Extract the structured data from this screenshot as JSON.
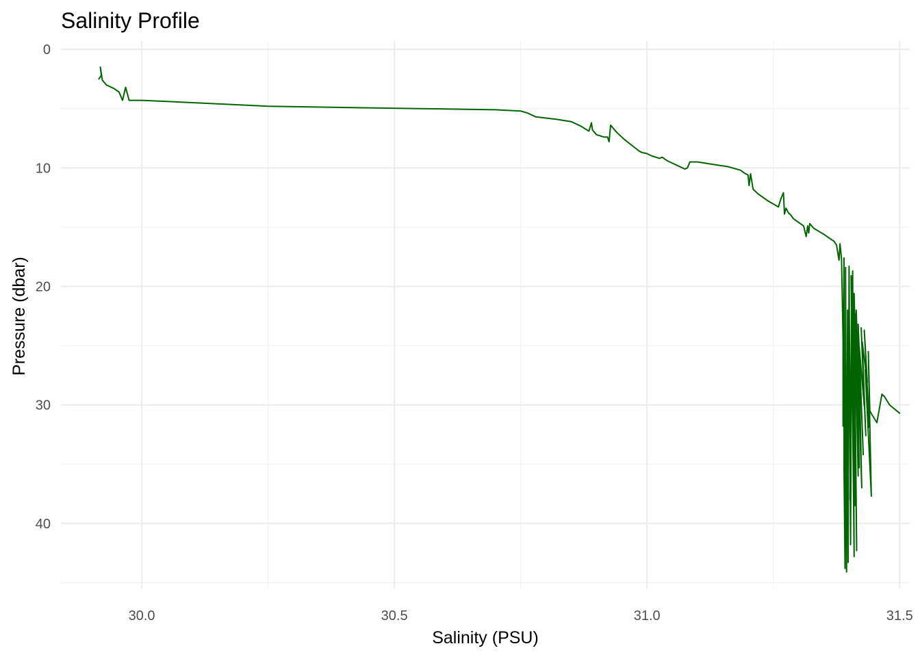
{
  "chart_data": {
    "type": "line",
    "title": "Salinity Profile",
    "xlabel": "Salinity (PSU)",
    "ylabel": "Pressure (dbar)",
    "xlim": [
      29.84,
      31.52
    ],
    "ylim": [
      45.5,
      -0.7
    ],
    "y_reversed": true,
    "grid": true,
    "x_ticks": [
      30.0,
      30.5,
      31.0,
      31.5
    ],
    "x_tick_labels": [
      "30.0",
      "30.5",
      "31.0",
      "31.5"
    ],
    "x_minor_ticks": [
      30.25,
      30.75,
      31.25
    ],
    "y_ticks": [
      0,
      10,
      20,
      30,
      40
    ],
    "y_tick_labels": [
      "0",
      "10",
      "20",
      "30",
      "40"
    ],
    "y_minor_ticks": [
      5,
      15,
      25,
      35,
      45
    ],
    "series": [
      {
        "color": "#006400",
        "x": [
          29.915,
          29.92,
          29.918,
          29.922,
          29.93,
          29.945,
          29.955,
          29.962,
          29.968,
          29.975,
          30.0,
          30.1,
          30.25,
          30.4,
          30.55,
          30.7,
          30.75,
          30.765,
          30.78,
          30.82,
          30.85,
          30.86,
          30.87,
          30.885,
          30.89,
          30.892,
          30.9,
          30.915,
          30.922,
          30.925,
          30.928,
          30.93,
          30.94,
          30.955,
          30.97,
          30.985,
          30.99,
          31.0,
          31.01,
          31.025,
          31.03,
          31.04,
          31.05,
          31.06,
          31.075,
          31.08,
          31.085,
          31.1,
          31.13,
          31.16,
          31.185,
          31.195,
          31.2,
          31.202,
          31.205,
          31.21,
          31.22,
          31.24,
          31.26,
          31.265,
          31.27,
          31.272,
          31.275,
          31.28,
          31.285,
          31.29,
          31.3,
          31.31,
          31.315,
          31.318,
          31.32,
          31.322,
          31.33,
          31.35,
          31.37,
          31.375,
          31.38,
          31.382,
          31.385,
          31.388,
          31.388,
          31.39,
          31.39,
          31.392,
          31.393,
          31.395,
          31.397,
          31.398,
          31.4,
          31.403,
          31.405,
          31.402,
          31.407,
          31.41,
          31.404,
          31.412,
          31.409,
          31.415,
          31.41,
          31.418,
          31.412,
          31.42,
          31.414,
          31.422,
          31.416,
          31.425,
          31.418,
          31.428,
          31.42,
          31.43,
          31.424,
          31.433,
          31.426,
          31.436,
          31.43,
          31.44,
          31.432,
          31.444,
          31.438,
          31.441,
          31.445,
          31.455,
          31.465,
          31.47,
          31.48,
          31.5
        ],
        "y": [
          2.5,
          2.2,
          1.5,
          2.6,
          3.0,
          3.3,
          3.6,
          4.3,
          3.2,
          4.3,
          4.3,
          4.5,
          4.8,
          4.9,
          5.0,
          5.1,
          5.2,
          5.4,
          5.7,
          5.9,
          6.1,
          6.3,
          6.5,
          6.9,
          6.2,
          6.8,
          7.2,
          7.4,
          7.4,
          7.8,
          6.4,
          6.5,
          7.0,
          7.6,
          8.1,
          8.6,
          8.7,
          8.8,
          9.0,
          9.2,
          9.1,
          9.4,
          9.6,
          9.8,
          10.1,
          10.0,
          9.5,
          9.5,
          9.7,
          9.9,
          10.2,
          10.5,
          10.6,
          11.5,
          10.5,
          11.8,
          12.2,
          12.8,
          13.3,
          12.6,
          12.1,
          13.9,
          13.4,
          13.8,
          14.0,
          14.3,
          14.6,
          14.9,
          15.8,
          14.9,
          15.5,
          14.7,
          15.1,
          15.6,
          16.2,
          16.5,
          17.8,
          16.4,
          17.7,
          24.5,
          31.8,
          17.6,
          35.5,
          43.8,
          18.4,
          44.1,
          22.0,
          43.3,
          18.3,
          41.8,
          20.7,
          38.0,
          18.7,
          42.8,
          19.1,
          38.5,
          21.2,
          42.3,
          20.6,
          36.0,
          22.3,
          35.3,
          22.0,
          31.8,
          24.6,
          37.0,
          23.2,
          34.2,
          25.1,
          30.1,
          23.5,
          32.6,
          24.7,
          28.1,
          23.7,
          31.9,
          27.0,
          37.7,
          25.5,
          30.5,
          30.8,
          31.5,
          29.1,
          29.3,
          30.0,
          30.7
        ]
      }
    ]
  }
}
